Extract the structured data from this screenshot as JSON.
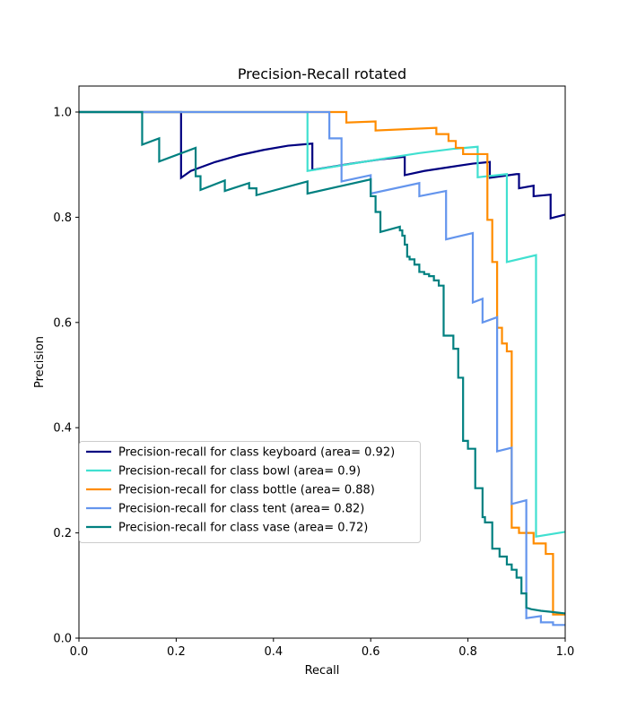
{
  "chart_data": {
    "type": "line",
    "title": "Precision-Recall rotated",
    "xlabel": "Recall",
    "ylabel": "Precision",
    "xlim": [
      0.0,
      1.0
    ],
    "ylim": [
      0.0,
      1.05
    ],
    "xticks": [
      "0.0",
      "0.2",
      "0.4",
      "0.6",
      "0.8",
      "1.0"
    ],
    "yticks": [
      "0.0",
      "0.2",
      "0.4",
      "0.6",
      "0.8",
      "1.0"
    ],
    "grid": false,
    "legend_position": "lower-left",
    "series": [
      {
        "name": "Precision-recall for class keyboard (area= 0.92)",
        "color": "#000080",
        "points": [
          [
            0,
            1.0
          ],
          [
            0.21,
            1.0
          ],
          [
            0.21,
            0.875
          ],
          [
            0.23,
            0.888
          ],
          [
            0.28,
            0.905
          ],
          [
            0.33,
            0.918
          ],
          [
            0.38,
            0.928
          ],
          [
            0.43,
            0.936
          ],
          [
            0.48,
            0.94
          ],
          [
            0.48,
            0.89
          ],
          [
            0.56,
            0.902
          ],
          [
            0.62,
            0.91
          ],
          [
            0.67,
            0.915
          ],
          [
            0.67,
            0.88
          ],
          [
            0.71,
            0.888
          ],
          [
            0.76,
            0.895
          ],
          [
            0.81,
            0.902
          ],
          [
            0.845,
            0.905
          ],
          [
            0.845,
            0.875
          ],
          [
            0.9,
            0.882
          ],
          [
            0.905,
            0.882
          ],
          [
            0.905,
            0.855
          ],
          [
            0.935,
            0.86
          ],
          [
            0.935,
            0.84
          ],
          [
            0.97,
            0.843
          ],
          [
            0.97,
            0.798
          ],
          [
            1.0,
            0.805
          ]
        ]
      },
      {
        "name": "Precision-recall for class bowl (area= 0.9)",
        "color": "#40E0D0",
        "points": [
          [
            0,
            1.0
          ],
          [
            0.47,
            1.0
          ],
          [
            0.47,
            0.888
          ],
          [
            0.55,
            0.9
          ],
          [
            0.63,
            0.912
          ],
          [
            0.7,
            0.922
          ],
          [
            0.77,
            0.93
          ],
          [
            0.82,
            0.934
          ],
          [
            0.82,
            0.876
          ],
          [
            0.88,
            0.882
          ],
          [
            0.88,
            0.715
          ],
          [
            0.94,
            0.728
          ],
          [
            0.94,
            0.193
          ],
          [
            1.0,
            0.202
          ]
        ]
      },
      {
        "name": "Precision-recall for class bottle (area= 0.88)",
        "color": "#FF8C00",
        "points": [
          [
            0,
            1.0
          ],
          [
            0.55,
            1.0
          ],
          [
            0.55,
            0.98
          ],
          [
            0.61,
            0.982
          ],
          [
            0.61,
            0.965
          ],
          [
            0.735,
            0.97
          ],
          [
            0.735,
            0.958
          ],
          [
            0.76,
            0.958
          ],
          [
            0.76,
            0.945
          ],
          [
            0.775,
            0.945
          ],
          [
            0.775,
            0.932
          ],
          [
            0.79,
            0.932
          ],
          [
            0.79,
            0.92
          ],
          [
            0.84,
            0.92
          ],
          [
            0.84,
            0.91
          ],
          [
            0.84,
            0.795
          ],
          [
            0.85,
            0.795
          ],
          [
            0.85,
            0.715
          ],
          [
            0.86,
            0.715
          ],
          [
            0.86,
            0.59
          ],
          [
            0.87,
            0.59
          ],
          [
            0.87,
            0.56
          ],
          [
            0.88,
            0.56
          ],
          [
            0.88,
            0.545
          ],
          [
            0.89,
            0.545
          ],
          [
            0.89,
            0.21
          ],
          [
            0.905,
            0.21
          ],
          [
            0.905,
            0.2
          ],
          [
            0.935,
            0.2
          ],
          [
            0.935,
            0.18
          ],
          [
            0.96,
            0.18
          ],
          [
            0.96,
            0.16
          ],
          [
            0.975,
            0.16
          ],
          [
            0.975,
            0.045
          ],
          [
            1.0,
            0.045
          ]
        ]
      },
      {
        "name": "Precision-recall for class tent (area= 0.82)",
        "color": "#6495ED",
        "points": [
          [
            0,
            1.0
          ],
          [
            0.515,
            1.0
          ],
          [
            0.515,
            0.95
          ],
          [
            0.54,
            0.95
          ],
          [
            0.54,
            0.868
          ],
          [
            0.6,
            0.88
          ],
          [
            0.6,
            0.845
          ],
          [
            0.7,
            0.865
          ],
          [
            0.7,
            0.84
          ],
          [
            0.755,
            0.85
          ],
          [
            0.755,
            0.758
          ],
          [
            0.81,
            0.77
          ],
          [
            0.81,
            0.638
          ],
          [
            0.83,
            0.645
          ],
          [
            0.83,
            0.6
          ],
          [
            0.86,
            0.61
          ],
          [
            0.86,
            0.355
          ],
          [
            0.89,
            0.362
          ],
          [
            0.89,
            0.255
          ],
          [
            0.92,
            0.262
          ],
          [
            0.92,
            0.038
          ],
          [
            0.95,
            0.042
          ],
          [
            0.95,
            0.03
          ],
          [
            0.975,
            0.03
          ],
          [
            0.975,
            0.025
          ],
          [
            1.0,
            0.025
          ]
        ]
      },
      {
        "name": "Precision-recall for class vase (area= 0.72)",
        "color": "#008080",
        "points": [
          [
            0,
            1.0
          ],
          [
            0.13,
            1.0
          ],
          [
            0.13,
            0.938
          ],
          [
            0.165,
            0.95
          ],
          [
            0.165,
            0.906
          ],
          [
            0.24,
            0.932
          ],
          [
            0.24,
            0.878
          ],
          [
            0.25,
            0.878
          ],
          [
            0.25,
            0.852
          ],
          [
            0.3,
            0.87
          ],
          [
            0.3,
            0.85
          ],
          [
            0.35,
            0.865
          ],
          [
            0.35,
            0.855
          ],
          [
            0.365,
            0.855
          ],
          [
            0.365,
            0.842
          ],
          [
            0.47,
            0.868
          ],
          [
            0.47,
            0.845
          ],
          [
            0.6,
            0.872
          ],
          [
            0.6,
            0.84
          ],
          [
            0.61,
            0.84
          ],
          [
            0.61,
            0.81
          ],
          [
            0.62,
            0.81
          ],
          [
            0.62,
            0.772
          ],
          [
            0.66,
            0.782
          ],
          [
            0.66,
            0.775
          ],
          [
            0.665,
            0.775
          ],
          [
            0.665,
            0.765
          ],
          [
            0.67,
            0.765
          ],
          [
            0.67,
            0.748
          ],
          [
            0.675,
            0.748
          ],
          [
            0.675,
            0.725
          ],
          [
            0.68,
            0.725
          ],
          [
            0.68,
            0.72
          ],
          [
            0.69,
            0.72
          ],
          [
            0.69,
            0.71
          ],
          [
            0.7,
            0.71
          ],
          [
            0.7,
            0.696
          ],
          [
            0.71,
            0.696
          ],
          [
            0.71,
            0.692
          ],
          [
            0.72,
            0.692
          ],
          [
            0.72,
            0.688
          ],
          [
            0.73,
            0.688
          ],
          [
            0.73,
            0.68
          ],
          [
            0.74,
            0.68
          ],
          [
            0.74,
            0.67
          ],
          [
            0.75,
            0.67
          ],
          [
            0.75,
            0.575
          ],
          [
            0.77,
            0.575
          ],
          [
            0.77,
            0.55
          ],
          [
            0.78,
            0.55
          ],
          [
            0.78,
            0.495
          ],
          [
            0.79,
            0.495
          ],
          [
            0.79,
            0.375
          ],
          [
            0.8,
            0.375
          ],
          [
            0.8,
            0.36
          ],
          [
            0.815,
            0.36
          ],
          [
            0.815,
            0.285
          ],
          [
            0.83,
            0.285
          ],
          [
            0.83,
            0.23
          ],
          [
            0.835,
            0.23
          ],
          [
            0.835,
            0.22
          ],
          [
            0.85,
            0.22
          ],
          [
            0.85,
            0.17
          ],
          [
            0.865,
            0.17
          ],
          [
            0.865,
            0.155
          ],
          [
            0.88,
            0.155
          ],
          [
            0.88,
            0.14
          ],
          [
            0.89,
            0.14
          ],
          [
            0.89,
            0.13
          ],
          [
            0.9,
            0.13
          ],
          [
            0.9,
            0.115
          ],
          [
            0.91,
            0.115
          ],
          [
            0.91,
            0.085
          ],
          [
            0.92,
            0.085
          ],
          [
            0.92,
            0.058
          ],
          [
            0.93,
            0.055
          ],
          [
            0.95,
            0.052
          ],
          [
            0.97,
            0.05
          ],
          [
            1.0,
            0.047
          ]
        ]
      }
    ]
  }
}
